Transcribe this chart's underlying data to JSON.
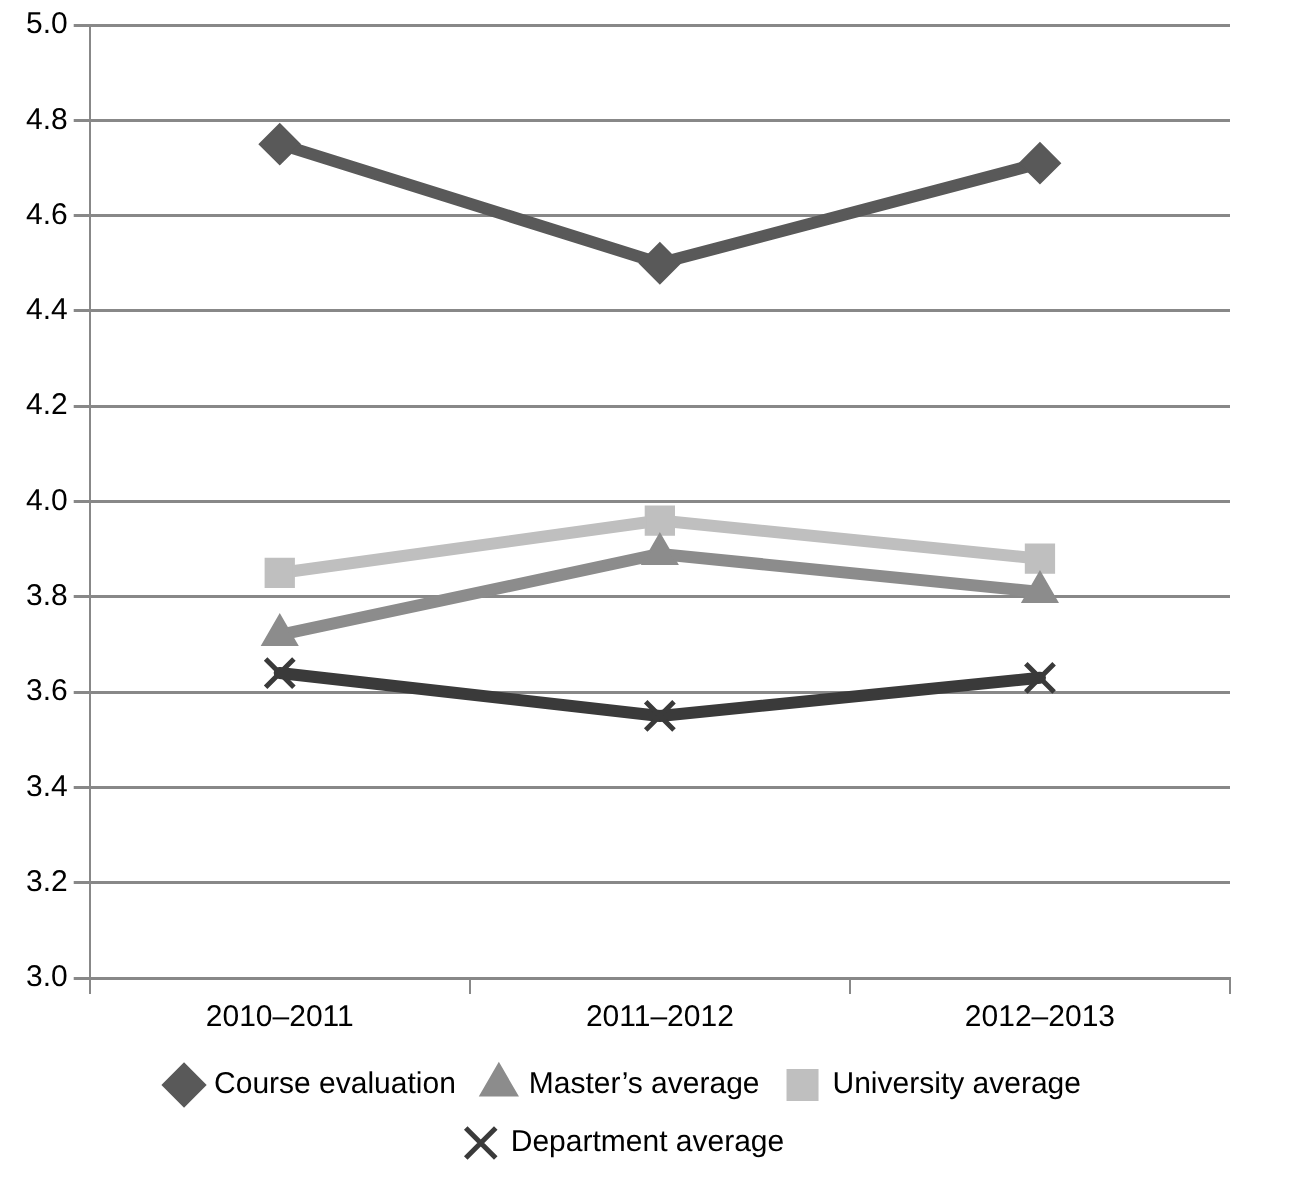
{
  "chart_data": {
    "type": "line",
    "categories": [
      "2010–2011",
      "2011–2012",
      "2012–2013"
    ],
    "series": [
      {
        "name": "Course evaluation",
        "color": "#595959",
        "marker": "diamond",
        "values": [
          4.75,
          4.5,
          4.71
        ]
      },
      {
        "name": "Master’s average",
        "color": "#8c8c8c",
        "marker": "triangle",
        "values": [
          3.72,
          3.89,
          3.81
        ]
      },
      {
        "name": "University average",
        "color": "#bfbfbf",
        "marker": "square",
        "values": [
          3.85,
          3.96,
          3.88
        ]
      },
      {
        "name": "Department average",
        "color": "#3a3a3a",
        "marker": "cross",
        "values": [
          3.64,
          3.55,
          3.63
        ]
      }
    ],
    "ylim": [
      3.0,
      5.0
    ],
    "yticks": [
      {
        "value": 3.0,
        "label": "3.0"
      },
      {
        "value": 3.2,
        "label": "3.2"
      },
      {
        "value": 3.4,
        "label": "3.4"
      },
      {
        "value": 3.6,
        "label": "3.6"
      },
      {
        "value": 3.8,
        "label": "3.8"
      },
      {
        "value": 4.0,
        "label": "4.0"
      },
      {
        "value": 4.2,
        "label": "4.2"
      },
      {
        "value": 4.4,
        "label": "4.4"
      },
      {
        "value": 4.6,
        "label": "4.6"
      },
      {
        "value": 4.8,
        "label": "4.8"
      },
      {
        "value": 5.0,
        "label": "5.0"
      }
    ],
    "grid": "y",
    "legend": "bottom",
    "line_style": "solid"
  }
}
